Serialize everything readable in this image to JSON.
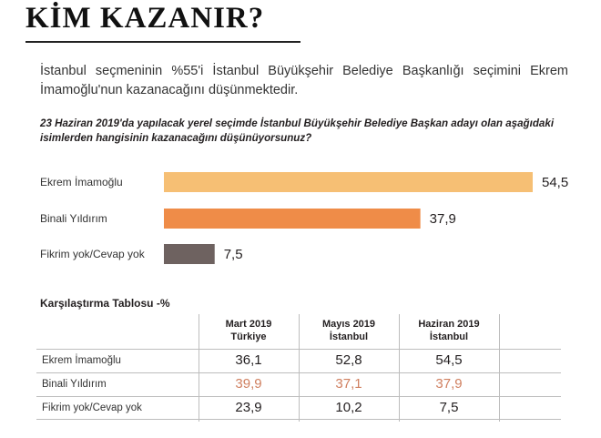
{
  "title": "KİM KAZANIR?",
  "lead": "İstanbul seçmeninin %55'i İstanbul Büyükşehir Belediye Başkanlığı seçimini Ekrem İmamoğlu'nun kazanacağını düşünmektedir.",
  "question": "23 Haziran 2019'da yapılacak yerel seçimde İstanbul Büyükşehir Belediye Başkan adayı olan aşağıdaki isimlerden hangisinin kazanacağını düşünüyorsunuz?",
  "colors": {
    "bar1": "#f6bf74",
    "bar2": "#ef8c48",
    "bar3": "#6e6260",
    "accent_value": "#d08060"
  },
  "chart_data": {
    "type": "bar",
    "orientation": "horizontal",
    "categories": [
      "Ekrem İmamoğlu",
      "Binali Yıldırım",
      "Fikrim yok/Cevap yok"
    ],
    "values": [
      54.5,
      37.9,
      7.5
    ],
    "value_labels": [
      "54,5",
      "37,9",
      "7,5"
    ],
    "xlim": [
      0,
      54.5
    ],
    "grid": false
  },
  "table": {
    "title": "Karşılaştırma Tablosu -%",
    "columns": [
      {
        "line1": "Mart 2019",
        "line2": "Türkiye"
      },
      {
        "line1": "Mayıs 2019",
        "line2": "İstanbul"
      },
      {
        "line1": "Haziran 2019",
        "line2": "İstanbul"
      }
    ],
    "rows": [
      {
        "label": "Ekrem İmamoğlu",
        "values": [
          "36,1",
          "52,8",
          "54,5"
        ]
      },
      {
        "label": "Binali Yıldırım",
        "values": [
          "39,9",
          "37,1",
          "37,9"
        ]
      },
      {
        "label": "Fikrim yok/Cevap yok",
        "values": [
          "23,9",
          "10,2",
          "7,5"
        ]
      }
    ]
  }
}
